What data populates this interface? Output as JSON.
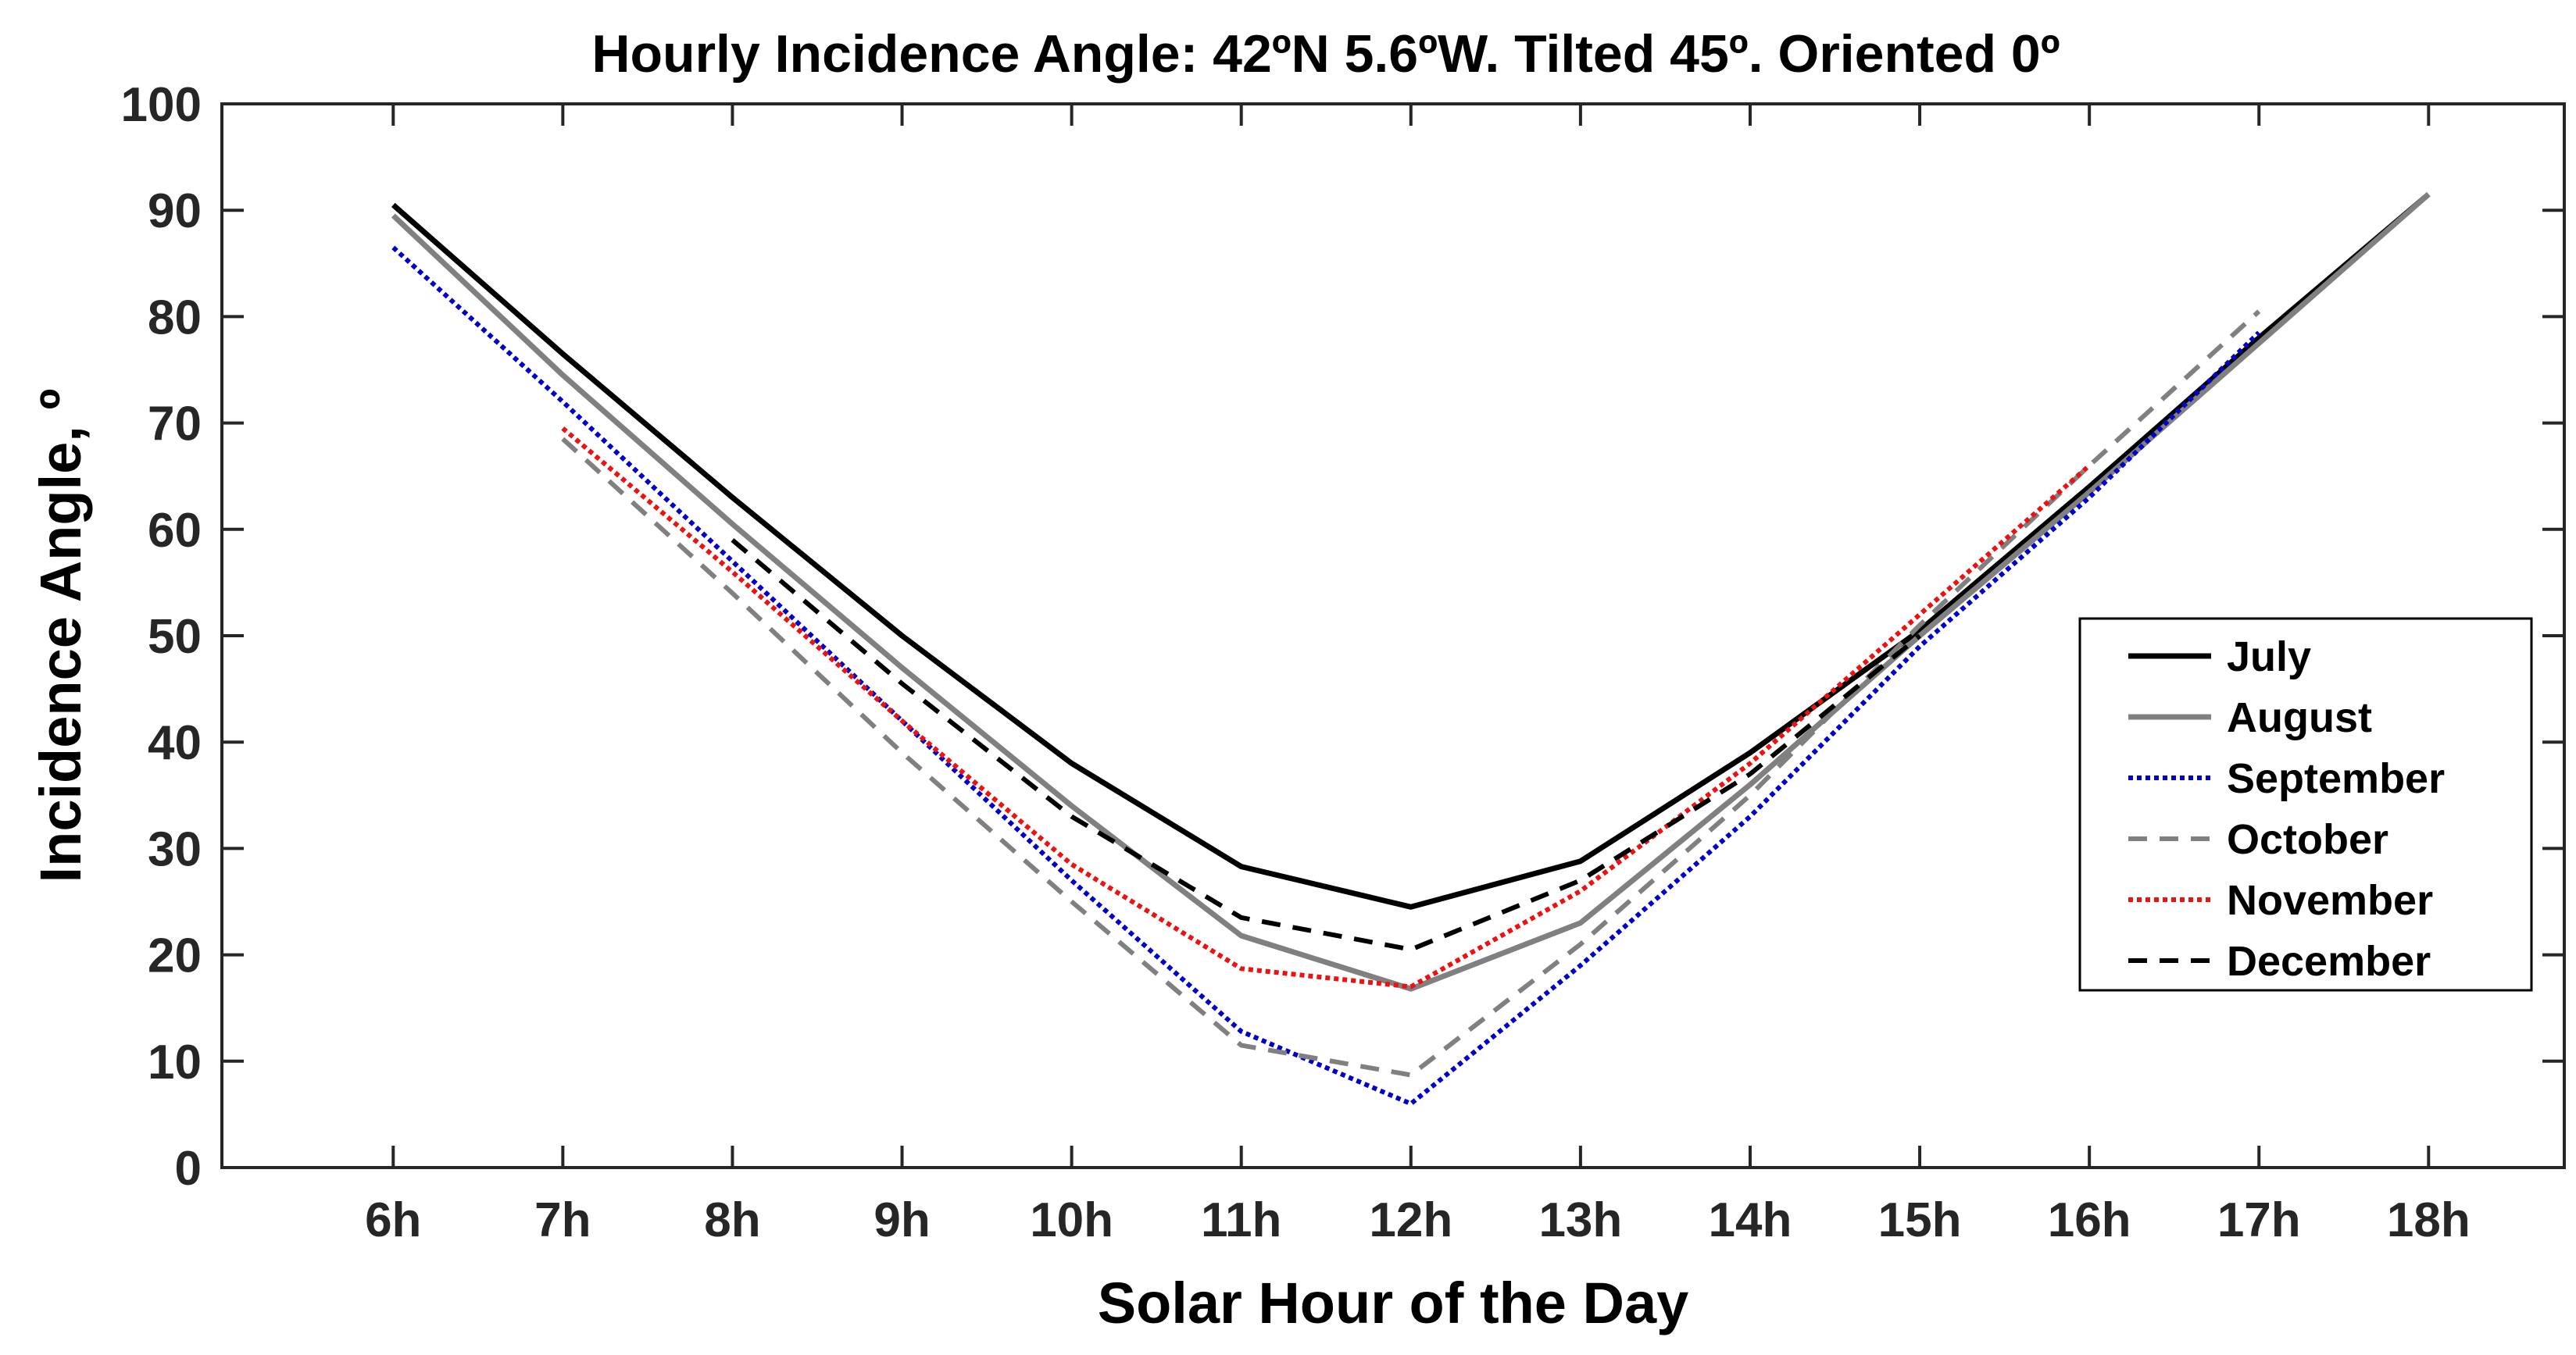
{
  "chart_data": {
    "type": "line",
    "title": "Hourly Incidence Angle: 42ºN 5.6ºW. Tilted 45º. Oriented 0º",
    "xlabel": "Solar Hour of the Day",
    "ylabel": "Incidence Angle, º",
    "categories": [
      "6h",
      "7h",
      "8h",
      "9h",
      "10h",
      "11h",
      "12h",
      "13h",
      "14h",
      "15h",
      "16h",
      "17h",
      "18h"
    ],
    "x": [
      6,
      7,
      8,
      9,
      10,
      11,
      12,
      13,
      14,
      15,
      16,
      17,
      18
    ],
    "xlim": [
      4.99,
      18.8
    ],
    "ylim": [
      0,
      100
    ],
    "yticks": [
      0,
      10,
      20,
      30,
      40,
      50,
      60,
      70,
      80,
      90,
      100
    ],
    "grid": false,
    "legend_position": "right",
    "series": [
      {
        "name": "July",
        "color": "#000000",
        "style": "solid",
        "values": [
          90.5,
          76.5,
          63,
          50,
          38,
          28.3,
          24.5,
          28.8,
          39,
          50.5,
          64,
          78,
          91.5
        ]
      },
      {
        "name": "August",
        "color": "#808080",
        "style": "solid",
        "values": [
          89.5,
          74.5,
          60.5,
          47,
          34,
          21.8,
          16.8,
          23,
          36,
          50,
          63.5,
          77.5,
          91.5
        ]
      },
      {
        "name": "September",
        "color": "#0000cc",
        "style": "dotted",
        "values": [
          86.5,
          72,
          57,
          42,
          27,
          12.8,
          6,
          19,
          33,
          49,
          63,
          78.5,
          null
        ]
      },
      {
        "name": "October",
        "color": "#808080",
        "style": "dashed",
        "values": [
          null,
          68.5,
          54,
          39,
          25,
          11.5,
          8.7,
          21,
          35,
          51,
          66,
          80.5,
          null
        ]
      },
      {
        "name": "November",
        "color": "#ee1111",
        "style": "dotted",
        "values": [
          null,
          69.5,
          56,
          42,
          28.5,
          18.7,
          17,
          26,
          38,
          52,
          66,
          null,
          null
        ]
      },
      {
        "name": "December",
        "color": "#000000",
        "style": "dashed",
        "values": [
          null,
          null,
          59,
          45.5,
          33,
          23.5,
          20.5,
          27,
          37,
          50,
          null,
          null,
          null
        ]
      }
    ]
  }
}
